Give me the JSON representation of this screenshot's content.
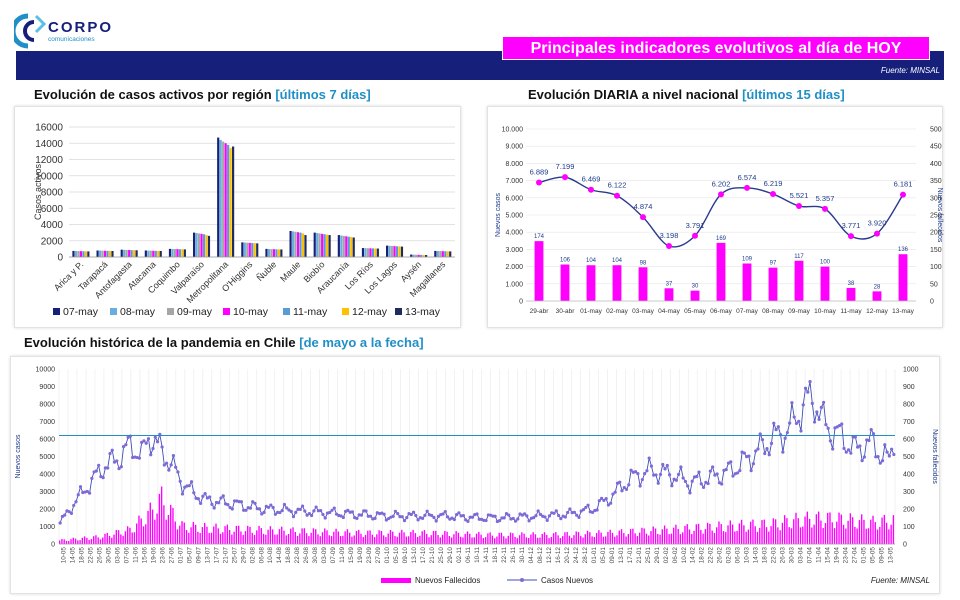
{
  "brand": {
    "name": "CORPO",
    "sub": "comunicaciones"
  },
  "header": {
    "title": "Principales indicadores evolutivos al día de HOY",
    "source": "Fuente: MINSAL"
  },
  "colors": {
    "navy": "#16207a",
    "magenta": "#ff00ff",
    "line": "#5b4fc9",
    "accent": "#1f8fc6"
  },
  "left_section": {
    "title_main": "Evolución de casos activos por región",
    "title_accent": "[últimos 7 días]"
  },
  "right_section": {
    "title_main": "Evolución DIARIA  a nivel nacional",
    "title_accent": "[últimos 15 días]"
  },
  "bottom_section": {
    "title_main": "Evolución histórica de la pandemia en Chile",
    "title_accent": "[de mayo a la fecha]",
    "source": "Fuente: MINSAL"
  },
  "chart_data": [
    {
      "type": "bar",
      "title": "Evolución de casos activos por región [últimos 7 días]",
      "ylabel": "Casos activos",
      "ylim": [
        0,
        16000
      ],
      "yticks": [
        0,
        2000,
        4000,
        6000,
        8000,
        10000,
        12000,
        14000,
        16000
      ],
      "categories": [
        "Arica y P.",
        "Tarapacá",
        "Antofagasta",
        "Atacama",
        "Coquimbo",
        "Valparaíso",
        "Metropolitana",
        "O'Higgins",
        "Ñuble",
        "Maule",
        "Biobío",
        "Araucanía",
        "Los Ríos",
        "Los Lagos",
        "Aysén",
        "Magallanes"
      ],
      "series": [
        {
          "name": "07-may",
          "color": "#16207a",
          "values": [
            750,
            800,
            900,
            800,
            1000,
            3000,
            14700,
            1800,
            1000,
            3200,
            3000,
            2700,
            1100,
            1400,
            300,
            750
          ]
        },
        {
          "name": "08-may",
          "color": "#6aaee0",
          "values": [
            740,
            790,
            880,
            790,
            990,
            2950,
            14400,
            1780,
            980,
            3150,
            2950,
            2650,
            1090,
            1380,
            290,
            740
          ]
        },
        {
          "name": "09-may",
          "color": "#a6a6a6",
          "values": [
            730,
            780,
            870,
            780,
            980,
            2900,
            14200,
            1760,
            970,
            3100,
            2900,
            2600,
            1080,
            1360,
            280,
            730
          ]
        },
        {
          "name": "10-may",
          "color": "#ff00ff",
          "values": [
            720,
            770,
            860,
            770,
            970,
            2850,
            14000,
            1740,
            960,
            3050,
            2850,
            2550,
            1070,
            1340,
            270,
            720
          ]
        },
        {
          "name": "11-may",
          "color": "#5b9bd5",
          "values": [
            710,
            760,
            850,
            760,
            960,
            2800,
            13800,
            1720,
            950,
            3000,
            2800,
            2500,
            1060,
            1320,
            260,
            710
          ]
        },
        {
          "name": "12-may",
          "color": "#ffc000",
          "values": [
            700,
            750,
            840,
            750,
            950,
            2700,
            13400,
            1700,
            940,
            2900,
            2750,
            2450,
            1050,
            1300,
            250,
            700
          ]
        },
        {
          "name": "13-may",
          "color": "#1f2d5c",
          "values": [
            690,
            740,
            830,
            740,
            940,
            2600,
            13600,
            1680,
            930,
            2700,
            2700,
            2400,
            1040,
            1280,
            240,
            690
          ]
        }
      ],
      "legend": "bottom"
    },
    {
      "type": "bar+line",
      "title": "Evolución DIARIA  a nivel nacional [últimos 15 días]",
      "ylabel": "Nuevos casos",
      "y2label": "Nuevos fallecidos",
      "ylim": [
        0,
        10000
      ],
      "y2lim": [
        0,
        500
      ],
      "yticks": [
        "0",
        "1.000",
        "2.000",
        "3.000",
        "4.000",
        "5.000",
        "6.000",
        "7.000",
        "8.000",
        "9.000",
        "10.000"
      ],
      "y2ticks": [
        "0",
        "50",
        "100",
        "150",
        "200",
        "250",
        "300",
        "350",
        "400",
        "450",
        "500"
      ],
      "categories": [
        "29-abr",
        "30-abr",
        "01-may",
        "02-may",
        "03-may",
        "04-may",
        "05-may",
        "06-may",
        "07-may",
        "08-may",
        "09-may",
        "10-may",
        "11-may",
        "12-may",
        "13-may"
      ],
      "cases": [
        6889,
        7199,
        6469,
        6122,
        4874,
        3198,
        3791,
        6202,
        6574,
        6219,
        5521,
        5357,
        3771,
        3920,
        6181
      ],
      "cases_labels": [
        "6.889",
        "7.199",
        "6.469",
        "6.122",
        "4.874",
        "3.198",
        "3.791",
        "6.202",
        "6.574",
        "6.219",
        "5.521",
        "5.357",
        "3.771",
        "3.920",
        "6.181"
      ],
      "deaths": [
        174,
        106,
        104,
        104,
        98,
        37,
        30,
        169,
        109,
        97,
        117,
        100,
        38,
        28,
        136
      ]
    },
    {
      "type": "bar+line",
      "title": "Evolución histórica de la pandemia en Chile [de mayo a la fecha]",
      "ylabel": "Nuevos casos",
      "y2label": "Nuevos fallecidos",
      "ylim": [
        0,
        10000
      ],
      "y2lim": [
        0,
        1000
      ],
      "yticks": [
        "0",
        "1000",
        "2000",
        "3000",
        "4000",
        "5000",
        "6000",
        "7000",
        "8000",
        "9000",
        "10000"
      ],
      "y2ticks": [
        "0",
        "100",
        "200",
        "300",
        "400",
        "500",
        "600",
        "700",
        "800",
        "900",
        "1000"
      ],
      "reference_line": 6200,
      "x_ticks": [
        "10-05",
        "14-05",
        "18-05",
        "22-05",
        "26-05",
        "30-05",
        "03-06",
        "07-06",
        "11-06",
        "15-06",
        "19-06",
        "23-06",
        "27-06",
        "01-07",
        "05-07",
        "09-07",
        "13-07",
        "17-07",
        "21-07",
        "25-07",
        "29-07",
        "02-08",
        "06-08",
        "10-08",
        "14-08",
        "18-08",
        "22-08",
        "26-08",
        "30-08",
        "03-09",
        "07-09",
        "11-09",
        "15-09",
        "19-09",
        "23-09",
        "27-09",
        "01-10",
        "05-10",
        "09-10",
        "13-10",
        "17-10",
        "21-10",
        "25-10",
        "29-10",
        "02-11",
        "06-11",
        "10-11",
        "14-11",
        "18-11",
        "22-11",
        "26-11",
        "30-11",
        "04-12",
        "08-12",
        "12-12",
        "16-12",
        "20-12",
        "24-12",
        "28-12",
        "01-01",
        "05-01",
        "09-01",
        "13-01",
        "17-01",
        "21-01",
        "25-01",
        "29-01",
        "02-02",
        "06-02",
        "10-02",
        "14-02",
        "18-02",
        "22-02",
        "26-02",
        "02-03",
        "06-03",
        "10-03",
        "14-03",
        "18-03",
        "22-03",
        "26-03",
        "30-03",
        "03-04",
        "07-04",
        "11-04",
        "15-04",
        "19-04",
        "23-04",
        "27-04",
        "01-05",
        "05-05",
        "09-05",
        "13-05"
      ],
      "cases_control_points": [
        [
          0,
          1200
        ],
        [
          8,
          2500
        ],
        [
          15,
          3500
        ],
        [
          22,
          4500
        ],
        [
          28,
          4800
        ],
        [
          35,
          5700
        ],
        [
          40,
          5000
        ],
        [
          44,
          6200
        ],
        [
          50,
          5300
        ],
        [
          55,
          4500
        ],
        [
          60,
          3500
        ],
        [
          66,
          2900
        ],
        [
          72,
          2500
        ],
        [
          85,
          2300
        ],
        [
          100,
          2000
        ],
        [
          115,
          1900
        ],
        [
          130,
          1800
        ],
        [
          145,
          1700
        ],
        [
          160,
          1600
        ],
        [
          175,
          1600
        ],
        [
          190,
          1600
        ],
        [
          205,
          1500
        ],
        [
          220,
          1500
        ],
        [
          235,
          1600
        ],
        [
          250,
          1700
        ],
        [
          262,
          2000
        ],
        [
          270,
          2600
        ],
        [
          280,
          3700
        ],
        [
          290,
          4200
        ],
        [
          300,
          4000
        ],
        [
          310,
          3500
        ],
        [
          320,
          3800
        ],
        [
          330,
          4200
        ],
        [
          340,
          5000
        ],
        [
          350,
          6000
        ],
        [
          358,
          6500
        ],
        [
          365,
          7800
        ],
        [
          370,
          8500
        ],
        [
          375,
          7000
        ],
        [
          380,
          6400
        ],
        [
          385,
          6100
        ],
        [
          390,
          5400
        ],
        [
          395,
          5600
        ],
        [
          400,
          5800
        ],
        [
          404,
          5000
        ],
        [
          408,
          4800
        ],
        [
          410,
          6200
        ]
      ],
      "deaths_control_points": [
        [
          0,
          20
        ],
        [
          20,
          40
        ],
        [
          35,
          80
        ],
        [
          45,
          180
        ],
        [
          50,
          250
        ],
        [
          55,
          170
        ],
        [
          60,
          100
        ],
        [
          70,
          90
        ],
        [
          90,
          80
        ],
        [
          120,
          70
        ],
        [
          150,
          60
        ],
        [
          180,
          60
        ],
        [
          210,
          50
        ],
        [
          240,
          50
        ],
        [
          270,
          60
        ],
        [
          300,
          80
        ],
        [
          330,
          100
        ],
        [
          350,
          110
        ],
        [
          360,
          130
        ],
        [
          370,
          140
        ],
        [
          380,
          140
        ],
        [
          390,
          130
        ],
        [
          400,
          120
        ],
        [
          410,
          130
        ]
      ],
      "legend": [
        "Nuevos Fallecidos",
        "Casos Nuevos"
      ]
    }
  ]
}
